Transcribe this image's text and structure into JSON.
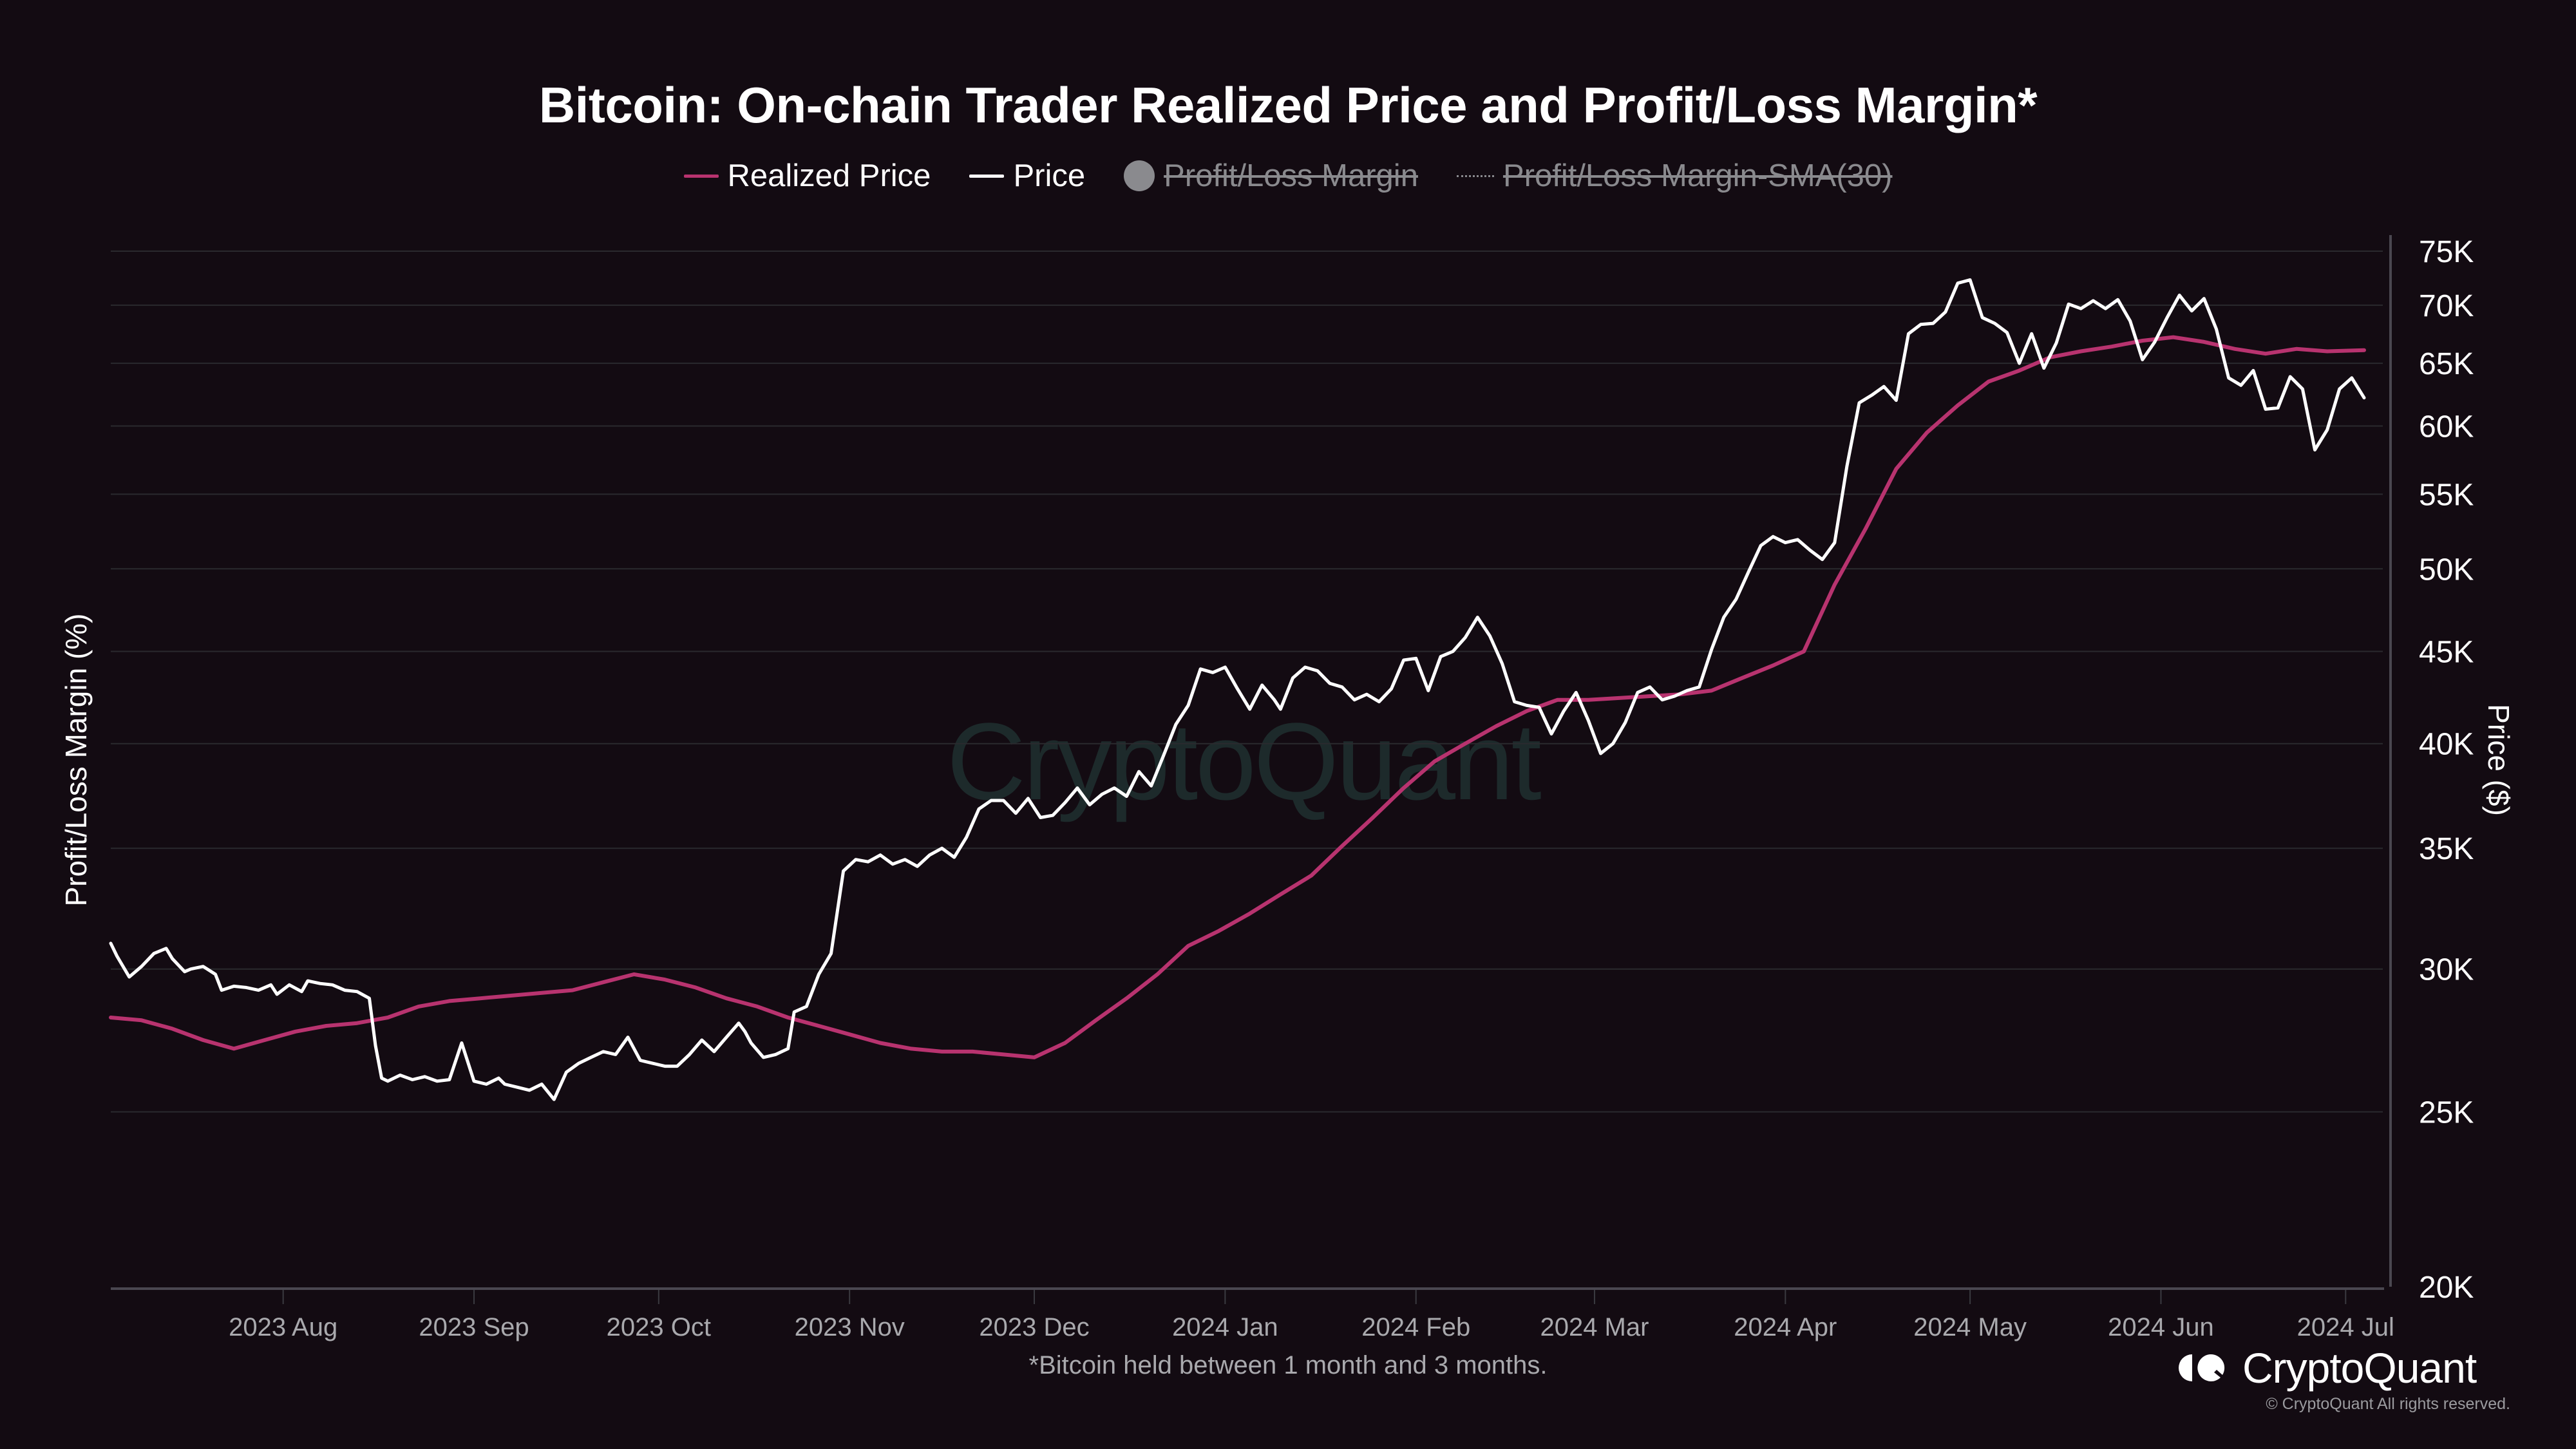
{
  "chart_data": {
    "type": "line",
    "title": "Bitcoin: On-chain Trader Realized Price and Profit/Loss Margin*",
    "footnote": "*Bitcoin held between 1 month and 3 months.",
    "ylabel_left": "Profit/Loss Margin (%)",
    "ylabel_right": "Price ($)",
    "yscale": "log",
    "ylim": [
      20000,
      76000
    ],
    "y_ticks": [
      20000,
      25000,
      30000,
      35000,
      40000,
      45000,
      50000,
      55000,
      60000,
      65000,
      70000,
      75000
    ],
    "y_tick_labels": [
      "20K",
      "25K",
      "30K",
      "35K",
      "40K",
      "45K",
      "50K",
      "55K",
      "60K",
      "65K",
      "70K",
      "75K"
    ],
    "x_start": "2023-07-04",
    "x_end": "2024-07-05",
    "x_ticks": [
      "2023-08-01",
      "2023-09-01",
      "2023-10-01",
      "2023-11-01",
      "2023-12-01",
      "2024-01-01",
      "2024-02-01",
      "2024-03-01",
      "2024-04-01",
      "2024-05-01",
      "2024-06-01",
      "2024-07-01"
    ],
    "x_tick_labels": [
      "2023 Aug",
      "2023 Sep",
      "2023 Oct",
      "2023 Nov",
      "2023 Dec",
      "2024 Jan",
      "2024 Feb",
      "2024 Mar",
      "2024 Apr",
      "2024 May",
      "2024 Jun",
      "2024 Jul"
    ],
    "grid": true,
    "legend_position": "top-center",
    "legend": [
      {
        "name": "Realized Price",
        "color": "#b8336f",
        "style": "line",
        "visible": true
      },
      {
        "name": "Price",
        "color": "#ffffff",
        "style": "line",
        "visible": true
      },
      {
        "name": "Profit/Loss Margin",
        "color": "#8a8a8e",
        "style": "dot",
        "visible": false
      },
      {
        "name": "Profit/Loss Margin-SMA(30)",
        "color": "#8a8a8e",
        "style": "dotted",
        "visible": false
      }
    ],
    "series": [
      {
        "name": "Price",
        "color": "#ffffff",
        "day_offsets": [
          0,
          1,
          3,
          5,
          7,
          9,
          10,
          12,
          13,
          15,
          17,
          18,
          20,
          22,
          24,
          26,
          27,
          29,
          31,
          32,
          34,
          36,
          38,
          40,
          42,
          43,
          44,
          45,
          47,
          49,
          51,
          53,
          55,
          57,
          59,
          61,
          63,
          64,
          66,
          68,
          70,
          72,
          74,
          76,
          78,
          80,
          82,
          84,
          86,
          88,
          90,
          92,
          94,
          96,
          98,
          100,
          102,
          103,
          104,
          106,
          108,
          110,
          111,
          113,
          115,
          117,
          119,
          121,
          123,
          125,
          127,
          129,
          131,
          133,
          135,
          137,
          139,
          141,
          143,
          145,
          147,
          149,
          151,
          153,
          155,
          157,
          159,
          161,
          163,
          165,
          167,
          169,
          171,
          173,
          175,
          177,
          179,
          181,
          183,
          185,
          187,
          189,
          190,
          192,
          194,
          196,
          198,
          200,
          202,
          204,
          206,
          208,
          210,
          212,
          214,
          216,
          218,
          220,
          222,
          224,
          226,
          228,
          230,
          232,
          234,
          236,
          238,
          240,
          242,
          244,
          246,
          248,
          250,
          252,
          254,
          256,
          258,
          260,
          262,
          264,
          266,
          268,
          270,
          272,
          274,
          276,
          278,
          280,
          282,
          284,
          286,
          288,
          290,
          292,
          294,
          296,
          298,
          300,
          302,
          304,
          306,
          308,
          310,
          312,
          314,
          316,
          318,
          320,
          322,
          324,
          326,
          328,
          330,
          332,
          334,
          336,
          338,
          340,
          342,
          344,
          346,
          348,
          350,
          352,
          354,
          356,
          358,
          360,
          362,
          364,
          366
        ],
        "values": [
          31000,
          30500,
          29700,
          30100,
          30600,
          30800,
          30400,
          29900,
          30000,
          30100,
          29800,
          29200,
          29350,
          29300,
          29200,
          29400,
          29050,
          29400,
          29150,
          29550,
          29450,
          29400,
          29200,
          29150,
          28900,
          27200,
          26100,
          26000,
          26200,
          26050,
          26150,
          26000,
          26050,
          27300,
          26000,
          25900,
          26100,
          25900,
          25800,
          25700,
          25900,
          25400,
          26300,
          26600,
          26800,
          27000,
          26900,
          27500,
          26700,
          26600,
          26500,
          26500,
          26900,
          27400,
          27000,
          27500,
          28000,
          27700,
          27300,
          26800,
          26900,
          27100,
          28400,
          28600,
          29800,
          30600,
          34000,
          34500,
          34400,
          34700,
          34300,
          34500,
          34200,
          34700,
          35000,
          34600,
          35500,
          36800,
          37200,
          37200,
          36600,
          37300,
          36400,
          36500,
          37100,
          37800,
          37000,
          37500,
          37800,
          37400,
          38600,
          37900,
          39400,
          41000,
          42000,
          44000,
          43800,
          44100,
          42900,
          41800,
          43100,
          42300,
          41800,
          43500,
          44100,
          43900,
          43200,
          43000,
          42300,
          42600,
          42200,
          42900,
          44500,
          44600,
          42800,
          44700,
          45000,
          45800,
          47000,
          45900,
          44300,
          42200,
          42000,
          41900,
          40500,
          41700,
          42700,
          41200,
          39500,
          40000,
          41100,
          42700,
          43000,
          42300,
          42500,
          42800,
          43000,
          45100,
          47000,
          48100,
          49800,
          51500,
          52100,
          51700,
          51900,
          51200,
          50600,
          51700,
          57000,
          61800,
          62400,
          63100,
          62000,
          67500,
          68300,
          68400,
          69400,
          72000,
          72300,
          68900,
          68400,
          67600,
          65000,
          67500,
          64600,
          66700,
          70100,
          69700,
          70400,
          69700,
          70500,
          68600,
          65300,
          66800,
          68900,
          70900,
          69500,
          70600,
          67900,
          63800,
          63200,
          64400,
          61300,
          61400,
          63900,
          62900,
          58200,
          59700,
          62900,
          63800,
          62200,
          61000,
          63500,
          66400,
          67000,
          66700,
          68900,
          70800,
          67600,
          70300,
          68800,
          69200,
          68400,
          71200,
          70600,
          68400,
          67000,
          67600,
          66100,
          65000,
          64800,
          63600,
          61500,
          61200,
          60700,
          61200,
          62700,
          58000
        ],
        "note": "values sampled from pixel trace; day_offsets measured from x_start"
      },
      {
        "name": "Realized Price",
        "color": "#b8336f",
        "day_offsets": [
          0,
          5,
          10,
          15,
          20,
          25,
          30,
          35,
          40,
          45,
          50,
          55,
          60,
          65,
          70,
          75,
          80,
          85,
          90,
          95,
          100,
          105,
          110,
          115,
          120,
          125,
          130,
          135,
          140,
          145,
          150,
          155,
          160,
          165,
          170,
          175,
          180,
          185,
          190,
          195,
          200,
          205,
          210,
          215,
          220,
          225,
          230,
          235,
          240,
          245,
          250,
          255,
          260,
          265,
          270,
          275,
          280,
          285,
          290,
          295,
          300,
          305,
          310,
          315,
          320,
          325,
          330,
          335,
          340,
          345,
          350,
          355,
          360,
          366
        ],
        "values": [
          28200,
          28100,
          27800,
          27400,
          27100,
          27400,
          27700,
          27900,
          28000,
          28200,
          28600,
          28800,
          28900,
          29000,
          29100,
          29200,
          29500,
          29800,
          29600,
          29300,
          28900,
          28600,
          28200,
          27900,
          27600,
          27300,
          27100,
          27000,
          27000,
          26900,
          26800,
          27300,
          28100,
          28900,
          29800,
          30900,
          31500,
          32200,
          33000,
          33800,
          35100,
          36400,
          37800,
          39100,
          40000,
          40900,
          41700,
          42300,
          42300,
          42400,
          42500,
          42600,
          42800,
          43500,
          44200,
          45000,
          49000,
          52600,
          56800,
          59500,
          61600,
          63500,
          64400,
          65500,
          66000,
          66400,
          66900,
          67200,
          66800,
          66200,
          65800,
          66200,
          66000,
          66100
        ]
      }
    ]
  },
  "logo": {
    "name": "CryptoQuant",
    "copyright": "© CryptoQuant All rights reserved."
  },
  "watermark": "CryptoQuant"
}
